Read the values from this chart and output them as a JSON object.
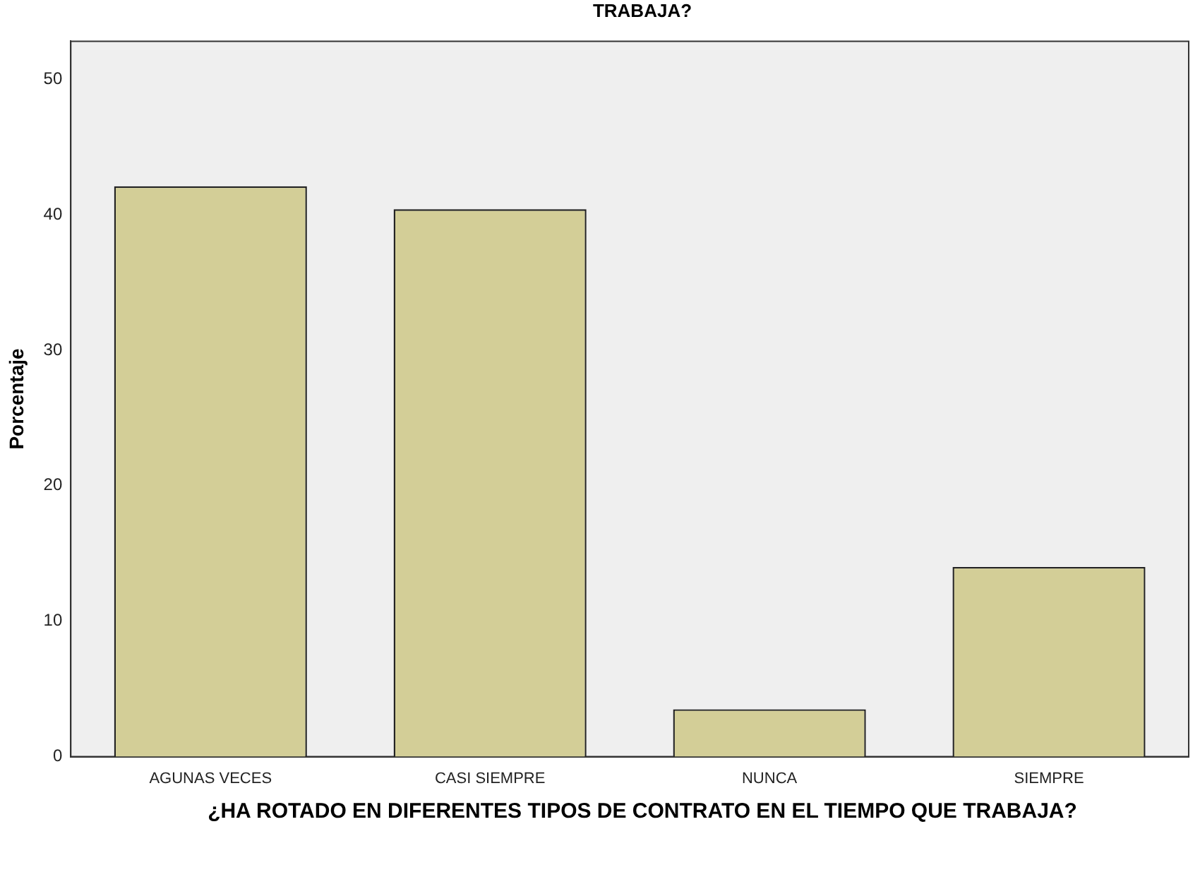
{
  "chart_data": {
    "type": "bar",
    "title": "TRABAJA?",
    "xlabel": "¿HA ROTADO EN DIFERENTES TIPOS DE CONTRATO EN EL TIEMPO QUE TRABAJA?",
    "ylabel": "Porcentaje",
    "categories": [
      "AGUNAS VECES",
      "CASI SIEMPRE",
      "NUNCA",
      "SIEMPRE"
    ],
    "values": [
      42.1,
      40.4,
      3.5,
      14.0
    ],
    "color": "#d3ce97",
    "ylim": [
      0,
      52.8
    ],
    "yticks": [
      0,
      10,
      20,
      30,
      40,
      50
    ],
    "grid": false,
    "legend": false
  }
}
